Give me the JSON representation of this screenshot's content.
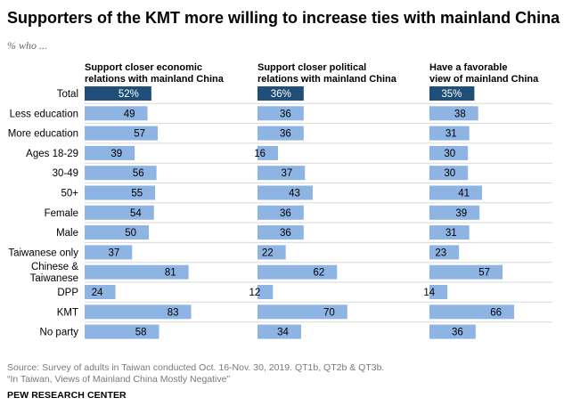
{
  "title": "Supporters of the KMT more willing to increase ties with mainland China",
  "subtitle": "% who ...",
  "chart_data": {
    "type": "bar",
    "orientation": "horizontal",
    "categories": [
      [
        "Total"
      ],
      [
        "Less education"
      ],
      [
        "More education"
      ],
      [
        "Ages 18-29"
      ],
      [
        "30-49"
      ],
      [
        "50+"
      ],
      [
        "Female"
      ],
      [
        "Male"
      ],
      [
        "Taiwanese only"
      ],
      [
        "Chinese &",
        "Taiwanese"
      ],
      [
        "DPP"
      ],
      [
        "KMT"
      ],
      [
        "No party"
      ]
    ],
    "series": [
      {
        "name_lines": [
          "Support closer economic",
          "relations with mainland China"
        ],
        "values": [
          52,
          49,
          57,
          39,
          56,
          55,
          54,
          50,
          37,
          81,
          24,
          83,
          58
        ],
        "labels": [
          "52%",
          "49",
          "57",
          "39",
          "56",
          "55",
          "54",
          "50",
          "37",
          "81",
          "24",
          "83",
          "58"
        ]
      },
      {
        "name_lines": [
          "Support closer political",
          "relations with mainland China"
        ],
        "values": [
          36,
          36,
          36,
          16,
          37,
          43,
          36,
          36,
          22,
          62,
          12,
          70,
          34
        ],
        "labels": [
          "36%",
          "36",
          "36",
          "16",
          "37",
          "43",
          "36",
          "36",
          "22",
          "62",
          "12",
          "70",
          "34"
        ]
      },
      {
        "name_lines": [
          "Have a favorable",
          "view of mainland China"
        ],
        "values": [
          35,
          38,
          31,
          30,
          30,
          41,
          39,
          31,
          23,
          57,
          14,
          66,
          36
        ],
        "labels": [
          "35%",
          "38",
          "31",
          "30",
          "30",
          "41",
          "39",
          "31",
          "23",
          "57",
          "14",
          "66",
          "36"
        ]
      }
    ],
    "highlight_first_row": true,
    "colors": {
      "total": "#1f4e79",
      "bar": "#8eb4e3",
      "total_label": "#ffffff",
      "label": "#000000",
      "separator": "#d9d9d9"
    }
  },
  "source_lines": [
    "Source: Survey of adults in Taiwan conducted Oct. 16-Nov. 30, 2019. QT1b, QT2b & QT3b.",
    "“In Taiwan, Views of Mainland China Mostly Negative”"
  ],
  "organization": "PEW RESEARCH CENTER"
}
